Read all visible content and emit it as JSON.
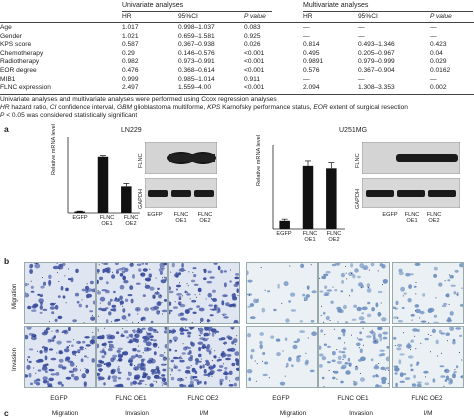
{
  "table": {
    "group_univariate": "Univariate analyses",
    "group_multivariate": "Multivariate analyses",
    "columns": [
      "HR",
      "95%CI",
      "P value",
      "HR",
      "95%CI",
      "P value"
    ],
    "rows": [
      {
        "label": "Age",
        "hr1": "1.017",
        "ci1": "0.998–1.037",
        "p1": "0.083",
        "hr2": "—",
        "ci2": "—",
        "p2": "—"
      },
      {
        "label": "Gender",
        "hr1": "1.021",
        "ci1": "0.659–1.581",
        "p1": "0.925",
        "hr2": "—",
        "ci2": "—",
        "p2": "—"
      },
      {
        "label": "KPS score",
        "hr1": "0.587",
        "ci1": "0.367–0.938",
        "p1": "0.026",
        "hr2": "0.814",
        "ci2": "0.493–1.346",
        "p2": "0.423"
      },
      {
        "label": "Chemotherapy",
        "hr1": "0.29",
        "ci1": "0.146–0.576",
        "p1": "<0.001",
        "hr2": "0.495",
        "ci2": "0.205–0.967",
        "p2": "0.04"
      },
      {
        "label": "Radiotherapy",
        "hr1": "0.982",
        "ci1": "0.973–0.991",
        "p1": "<0.001",
        "hr2": "0.9891",
        "ci2": "0.979–0.999",
        "p2": "0.029"
      },
      {
        "label": "EOR degree",
        "hr1": "0.476",
        "ci1": "0.368–0.614",
        "p1": "<0.001",
        "hr2": "0.576",
        "ci2": "0.367–0.904",
        "p2": "0.0162"
      },
      {
        "label": "MIB1",
        "hr1": "0.999",
        "ci1": "0.985–1.014",
        "p1": "0.911",
        "hr2": "—",
        "ci2": "—",
        "p2": "—"
      },
      {
        "label": "FLNC expression",
        "hr1": "2.497",
        "ci1": "1.559–4.00",
        "p1": "<0.001",
        "hr2": "2.094",
        "ci2": "1.308–3.353",
        "p2": "0.002"
      }
    ],
    "footnote1": "Univariate analyses and multivariate analyses were performed using Ccox regression analyses",
    "footnote2_italic1": "HR",
    "footnote2_text1": " hazard ratio, ",
    "footnote2_italic2": "CI",
    "footnote2_text2": " confidence interval, ",
    "footnote2_italic3": "GBM",
    "footnote2_text3": " glioblastoma multiforme, ",
    "footnote2_italic4": "KPS",
    "footnote2_text4": " Karnofsky performance status, ",
    "footnote2_italic5": "EOR",
    "footnote2_text5": " extent of surgical resection",
    "footnote3_italic": "P",
    "footnote3_text": " < 0.05 was considered statistically significant"
  },
  "figure": {
    "panel_a": "a",
    "panel_b": "b",
    "panel_c": "c",
    "cell_left": "LN229",
    "cell_right": "U251MG",
    "ylabel": "Relative mRNA level",
    "wb_flnc": "FLNC",
    "wb_gapdh": "GAPDH",
    "groups": [
      "EGFP",
      "FLNC OE1",
      "FLNC OE2"
    ],
    "group_labels_two_line": [
      [
        "EGFP",
        ""
      ],
      [
        "FLNC",
        "OE1"
      ],
      [
        "FLNC",
        "OE2"
      ]
    ],
    "row_migration": "Migration",
    "row_invasion": "Invasion",
    "c_labels": [
      "Migration",
      "Invasion",
      "I/M",
      "Migration",
      "Invasion",
      "I/M"
    ]
  },
  "chart_data": [
    {
      "type": "bar",
      "categories": [
        "EGFP",
        "FLNC OE1",
        "FLNC OE2"
      ],
      "values": [
        0.2,
        7.6,
        3.6
      ],
      "errors": [
        0.05,
        0.15,
        0.4
      ],
      "ylabel": "Relative mRNA level",
      "ylim": [
        0,
        10
      ]
    },
    {
      "type": "bar",
      "categories": [
        "EGFP",
        "FLNC OE1",
        "FLNC OE2"
      ],
      "values": [
        1.0,
        7.7,
        7.4
      ],
      "errors": [
        0.2,
        0.6,
        0.7
      ],
      "ylabel": "Relative mRNA level",
      "ylim": [
        0,
        10
      ]
    }
  ],
  "colors": {
    "bar": "#111111",
    "stain_left": "#3b4e9e",
    "stain_right": "#6d8fbf",
    "micro_bg_left": "#dfe6f2",
    "micro_bg_right": "#eaf0f4"
  }
}
